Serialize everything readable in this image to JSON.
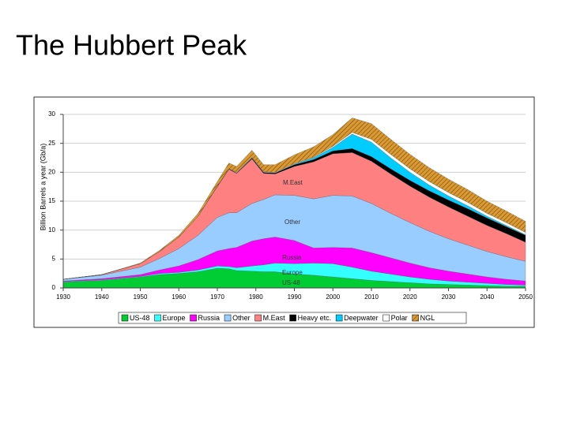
{
  "chart_data": {
    "type": "stacked_area",
    "title": "The Hubbert Peak",
    "ylabel": "Billion Barrels a year (Gb/a)",
    "x": [
      1930,
      1940,
      1950,
      1955,
      1960,
      1965,
      1970,
      1973,
      1975,
      1979,
      1982,
      1985,
      1990,
      1995,
      2000,
      2005,
      2010,
      2015,
      2020,
      2025,
      2030,
      2035,
      2040,
      2045,
      2050
    ],
    "xlim": [
      1930,
      2050
    ],
    "xticks": [
      1930,
      1940,
      1950,
      1960,
      1970,
      1980,
      1990,
      2000,
      2010,
      2020,
      2030,
      2040,
      2050
    ],
    "ylim": [
      0,
      30
    ],
    "yticks": [
      0,
      5,
      10,
      15,
      20,
      25,
      30
    ],
    "grid": true,
    "legend": "bottom",
    "series": [
      {
        "name": "US-48",
        "color": "#00cc33",
        "values": [
          1.0,
          1.3,
          1.9,
          2.3,
          2.5,
          2.8,
          3.4,
          3.3,
          3.0,
          2.9,
          2.8,
          2.8,
          2.4,
          2.2,
          1.9,
          1.6,
          1.3,
          1.1,
          0.9,
          0.7,
          0.6,
          0.5,
          0.4,
          0.3,
          0.3
        ]
      },
      {
        "name": "Europe",
        "color": "#33ffff",
        "values": [
          0.1,
          0.1,
          0.1,
          0.2,
          0.2,
          0.3,
          0.4,
          0.4,
          0.5,
          0.9,
          1.2,
          1.5,
          1.8,
          2.1,
          2.3,
          2.0,
          1.6,
          1.3,
          1.0,
          0.8,
          0.6,
          0.5,
          0.4,
          0.3,
          0.2
        ]
      },
      {
        "name": "Russia",
        "color": "#ff00ff",
        "values": [
          0.1,
          0.2,
          0.3,
          0.6,
          1.1,
          1.8,
          2.6,
          3.1,
          3.5,
          4.3,
          4.5,
          4.5,
          4.0,
          2.6,
          2.8,
          3.3,
          3.2,
          2.8,
          2.4,
          2.0,
          1.7,
          1.4,
          1.1,
          0.9,
          0.7
        ]
      },
      {
        "name": "Other",
        "color": "#99ccff",
        "values": [
          0.3,
          0.6,
          1.3,
          2.0,
          3.0,
          4.2,
          5.8,
          6.2,
          6.0,
          6.5,
          6.8,
          7.3,
          7.8,
          8.5,
          9.0,
          9.0,
          8.5,
          7.7,
          7.0,
          6.3,
          5.6,
          5.0,
          4.4,
          3.9,
          3.4
        ]
      },
      {
        "name": "M.East",
        "color": "#ff8080",
        "values": [
          0.0,
          0.1,
          0.6,
          1.2,
          2.0,
          3.3,
          5.3,
          7.5,
          6.8,
          7.7,
          4.5,
          3.6,
          5.0,
          6.4,
          7.2,
          7.5,
          7.3,
          6.8,
          6.3,
          5.9,
          5.5,
          5.0,
          4.5,
          4.0,
          3.3
        ]
      },
      {
        "name": "Heavy etc.",
        "color": "#000000",
        "values": [
          0,
          0,
          0,
          0,
          0,
          0,
          0.1,
          0.1,
          0.1,
          0.2,
          0.2,
          0.2,
          0.3,
          0.4,
          0.5,
          0.7,
          0.8,
          0.9,
          1.0,
          1.1,
          1.2,
          1.3,
          1.3,
          1.2,
          1.2
        ]
      },
      {
        "name": "Deepwater",
        "color": "#00ccff",
        "values": [
          0,
          0,
          0,
          0,
          0,
          0,
          0,
          0,
          0,
          0,
          0,
          0,
          0.1,
          0.3,
          0.6,
          2.5,
          2.5,
          1.9,
          1.4,
          1.0,
          0.7,
          0.5,
          0.3,
          0.2,
          0.1
        ]
      },
      {
        "name": "Polar",
        "color": "#ffffff",
        "values": [
          0,
          0,
          0,
          0,
          0,
          0,
          0,
          0,
          0.1,
          0.1,
          0.1,
          0.1,
          0.1,
          0.1,
          0.2,
          0.3,
          0.5,
          0.6,
          0.6,
          0.6,
          0.6,
          0.6,
          0.5,
          0.5,
          0.4
        ]
      },
      {
        "name": "NGL",
        "color": "#d99a33",
        "values": [
          0,
          0,
          0.1,
          0.2,
          0.3,
          0.5,
          0.8,
          1.0,
          1.0,
          1.2,
          1.2,
          1.3,
          1.5,
          1.8,
          2.0,
          2.5,
          2.7,
          2.6,
          2.5,
          2.4,
          2.3,
          2.2,
          2.1,
          2.0,
          1.9
        ]
      }
    ],
    "annotations": [
      "M.East",
      "Other",
      "Russia",
      "Europe",
      "US-48"
    ]
  }
}
